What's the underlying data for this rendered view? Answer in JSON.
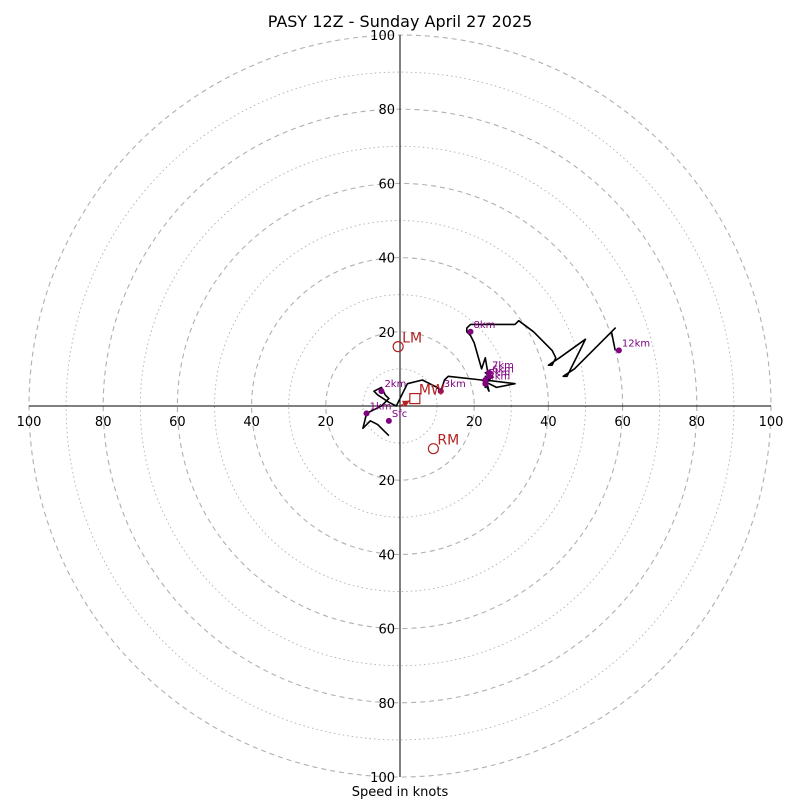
{
  "chart_data": {
    "type": "hodograph",
    "title": "PASY 12Z - Sunday April 27 2025",
    "xlabel": "Speed in knots",
    "max_speed": 100,
    "major_ring_step": 20,
    "minor_ring_step": 10,
    "tick_labels": {
      "right": [
        "20",
        "40",
        "60",
        "80",
        "100"
      ],
      "left": [
        "20",
        "40",
        "60",
        "80",
        "100"
      ],
      "up": [
        "20",
        "40",
        "60",
        "80",
        "100"
      ],
      "down": [
        "20",
        "40",
        "60",
        "80",
        "100"
      ]
    },
    "colors": {
      "trace": "#000000",
      "height_points": "#800080",
      "storm_motion": "#b22222",
      "rings": "#b0b0b0"
    },
    "trace": [
      {
        "u": -3,
        "v": -8
      },
      {
        "u": -6,
        "v": -5
      },
      {
        "u": -8,
        "v": -4
      },
      {
        "u": -10,
        "v": -6
      },
      {
        "u": -9,
        "v": -2
      },
      {
        "u": -7,
        "v": -1
      },
      {
        "u": -5,
        "v": 0
      },
      {
        "u": -3,
        "v": 2
      },
      {
        "u": -4,
        "v": 3
      },
      {
        "u": -5,
        "v": 5
      },
      {
        "u": -7,
        "v": 4
      },
      {
        "u": -6,
        "v": 3
      },
      {
        "u": -3,
        "v": 1
      },
      {
        "u": -1,
        "v": 0
      },
      {
        "u": 2,
        "v": 6
      },
      {
        "u": 6,
        "v": 7
      },
      {
        "u": 8,
        "v": 6
      },
      {
        "u": 10,
        "v": 5
      },
      {
        "u": 11,
        "v": 4
      },
      {
        "u": 12,
        "v": 7
      },
      {
        "u": 13,
        "v": 8
      },
      {
        "u": 22,
        "v": 7
      },
      {
        "u": 26,
        "v": 5
      },
      {
        "u": 31,
        "v": 6
      },
      {
        "u": 23,
        "v": 7
      },
      {
        "u": 23,
        "v": 5
      },
      {
        "u": 24,
        "v": 8
      },
      {
        "u": 23,
        "v": 9
      },
      {
        "u": 25,
        "v": 8
      },
      {
        "u": 23,
        "v": 6
      },
      {
        "u": 24,
        "v": 4
      },
      {
        "u": 23,
        "v": 8
      },
      {
        "u": 24,
        "v": 7
      },
      {
        "u": 23,
        "v": 13
      },
      {
        "u": 22,
        "v": 10
      },
      {
        "u": 20,
        "v": 17
      },
      {
        "u": 19,
        "v": 19
      },
      {
        "u": 18,
        "v": 20
      },
      {
        "u": 18,
        "v": 21
      },
      {
        "u": 19,
        "v": 22
      },
      {
        "u": 21,
        "v": 22
      },
      {
        "u": 26,
        "v": 22
      },
      {
        "u": 31,
        "v": 22
      },
      {
        "u": 32,
        "v": 23
      },
      {
        "u": 36,
        "v": 20
      },
      {
        "u": 41,
        "v": 15
      },
      {
        "u": 42,
        "v": 13
      },
      {
        "u": 41,
        "v": 11
      },
      {
        "u": 40,
        "v": 11
      },
      {
        "u": 43,
        "v": 13
      },
      {
        "u": 50,
        "v": 18
      },
      {
        "u": 47,
        "v": 12
      },
      {
        "u": 45,
        "v": 8
      },
      {
        "u": 44,
        "v": 8
      },
      {
        "u": 47,
        "v": 10
      },
      {
        "u": 57,
        "v": 20
      },
      {
        "u": 58,
        "v": 21
      },
      {
        "u": 57,
        "v": 20
      },
      {
        "u": 58,
        "v": 15
      }
    ],
    "height_points": [
      {
        "label": "Sfc",
        "u": -3,
        "v": -4
      },
      {
        "label": "1km",
        "u": -9,
        "v": -2
      },
      {
        "label": "2km",
        "u": -5,
        "v": 4
      },
      {
        "label": "3km",
        "u": 11,
        "v": 4
      },
      {
        "label": "4km",
        "u": 23,
        "v": 6
      },
      {
        "label": "5km",
        "u": 23,
        "v": 7
      },
      {
        "label": "6km",
        "u": 24,
        "v": 8
      },
      {
        "label": "7km",
        "u": 24,
        "v": 9
      },
      {
        "label": "8km",
        "u": 19,
        "v": 20
      },
      {
        "label": "12km",
        "u": 59,
        "v": 15
      }
    ],
    "storm_motions": [
      {
        "label": "LM",
        "u": -0.5,
        "v": 16,
        "marker": "circle"
      },
      {
        "label": "RM",
        "u": 9,
        "v": -11.5,
        "marker": "circle"
      },
      {
        "label": "MW",
        "u": 4,
        "v": 2,
        "marker": "square"
      }
    ]
  }
}
